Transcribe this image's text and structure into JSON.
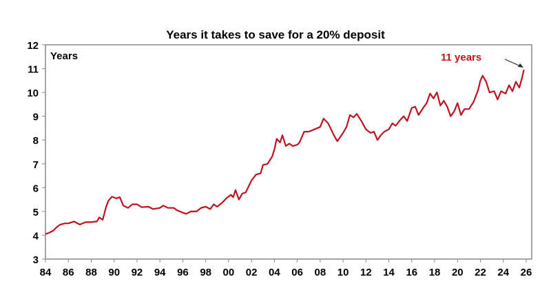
{
  "chart_data": {
    "type": "line",
    "title": "Years it takes to save for a 20% deposit",
    "ylabel": "Years",
    "xlabel": "",
    "ylim": [
      3,
      12
    ],
    "yticks": [
      3,
      4,
      5,
      6,
      7,
      8,
      9,
      10,
      11,
      12
    ],
    "xlim": [
      1984,
      2026.2
    ],
    "xticks": [
      {
        "value": 1984,
        "label": "84"
      },
      {
        "value": 1986,
        "label": "86"
      },
      {
        "value": 1988,
        "label": "88"
      },
      {
        "value": 1990,
        "label": "90"
      },
      {
        "value": 1992,
        "label": "92"
      },
      {
        "value": 1994,
        "label": "94"
      },
      {
        "value": 1996,
        "label": "96"
      },
      {
        "value": 1998,
        "label": "98"
      },
      {
        "value": 2000,
        "label": "00"
      },
      {
        "value": 2002,
        "label": "02"
      },
      {
        "value": 2004,
        "label": "04"
      },
      {
        "value": 2006,
        "label": "06"
      },
      {
        "value": 2008,
        "label": "08"
      },
      {
        "value": 2010,
        "label": "10"
      },
      {
        "value": 2012,
        "label": "12"
      },
      {
        "value": 2014,
        "label": "14"
      },
      {
        "value": 2016,
        "label": "16"
      },
      {
        "value": 2018,
        "label": "18"
      },
      {
        "value": 2020,
        "label": "20"
      },
      {
        "value": 2022,
        "label": "22"
      },
      {
        "value": 2024,
        "label": "24"
      },
      {
        "value": 2026,
        "label": "26"
      }
    ],
    "grid": false,
    "line_color": "#c0111f",
    "annotation": {
      "text": "11 years",
      "color": "#c0111f",
      "points_to": [
        2025.8,
        10.95
      ]
    },
    "series": [
      {
        "x": [
          1984.0,
          1984.3,
          1984.7,
          1985.0,
          1985.3,
          1985.7,
          1986.0,
          1986.5,
          1987.0,
          1987.5,
          1988.0,
          1988.5,
          1988.7,
          1989.0,
          1989.3,
          1989.5,
          1989.8,
          1990.2,
          1990.5,
          1990.8,
          1991.2,
          1991.6,
          1992.0,
          1992.4,
          1993.0,
          1993.4,
          1994.0,
          1994.3,
          1994.7,
          1995.2,
          1995.5,
          1996.0,
          1996.3,
          1996.7,
          1997.2,
          1997.6,
          1998.0,
          1998.4,
          1998.7,
          1999.0,
          1999.4,
          1999.8,
          2000.2,
          2000.4,
          2000.6,
          2000.9,
          2001.2,
          2001.5,
          2002.0,
          2002.4,
          2002.8,
          2003.0,
          2003.4,
          2003.8,
          2004.0,
          2004.2,
          2004.5,
          2004.7,
          2005.0,
          2005.3,
          2005.6,
          2006.0,
          2006.2,
          2006.6,
          2007.0,
          2007.5,
          2008.0,
          2008.3,
          2008.7,
          2009.2,
          2009.5,
          2010.0,
          2010.3,
          2010.6,
          2010.9,
          2011.2,
          2011.6,
          2012.0,
          2012.4,
          2012.7,
          2013.0,
          2013.3,
          2013.6,
          2014.0,
          2014.3,
          2014.6,
          2015.0,
          2015.3,
          2015.6,
          2016.0,
          2016.3,
          2016.6,
          2017.0,
          2017.3,
          2017.6,
          2017.9,
          2018.2,
          2018.5,
          2018.8,
          2019.1,
          2019.4,
          2019.7,
          2020.0,
          2020.3,
          2020.6,
          2021.0,
          2021.4,
          2021.8,
          2022.0,
          2022.2,
          2022.5,
          2022.8,
          2023.2,
          2023.5,
          2023.8,
          2024.2,
          2024.5,
          2024.8,
          2025.1,
          2025.4,
          2025.6,
          2025.8
        ],
        "values": [
          4.05,
          4.1,
          4.2,
          4.35,
          4.45,
          4.5,
          4.5,
          4.58,
          4.45,
          4.55,
          4.55,
          4.58,
          4.75,
          4.65,
          5.2,
          5.45,
          5.62,
          5.55,
          5.6,
          5.25,
          5.15,
          5.3,
          5.3,
          5.18,
          5.2,
          5.1,
          5.15,
          5.25,
          5.15,
          5.15,
          5.05,
          4.95,
          4.9,
          5.0,
          5.0,
          5.15,
          5.2,
          5.1,
          5.3,
          5.2,
          5.35,
          5.55,
          5.7,
          5.6,
          5.9,
          5.5,
          5.75,
          5.8,
          6.3,
          6.55,
          6.6,
          6.95,
          7.0,
          7.3,
          7.6,
          8.05,
          7.9,
          8.2,
          7.75,
          7.85,
          7.75,
          7.8,
          7.9,
          8.35,
          8.35,
          8.45,
          8.55,
          8.9,
          8.7,
          8.2,
          7.95,
          8.3,
          8.55,
          9.05,
          8.95,
          9.1,
          8.8,
          8.45,
          8.3,
          8.35,
          8.0,
          8.2,
          8.35,
          8.45,
          8.7,
          8.6,
          8.85,
          9.0,
          8.8,
          9.35,
          9.4,
          9.05,
          9.35,
          9.55,
          9.95,
          9.75,
          10.0,
          9.45,
          9.65,
          9.4,
          9.0,
          9.2,
          9.55,
          9.05,
          9.3,
          9.3,
          9.6,
          10.1,
          10.5,
          10.7,
          10.45,
          10.0,
          10.05,
          9.7,
          10.05,
          9.95,
          10.3,
          10.05,
          10.45,
          10.2,
          10.55,
          10.95
        ]
      }
    ]
  }
}
